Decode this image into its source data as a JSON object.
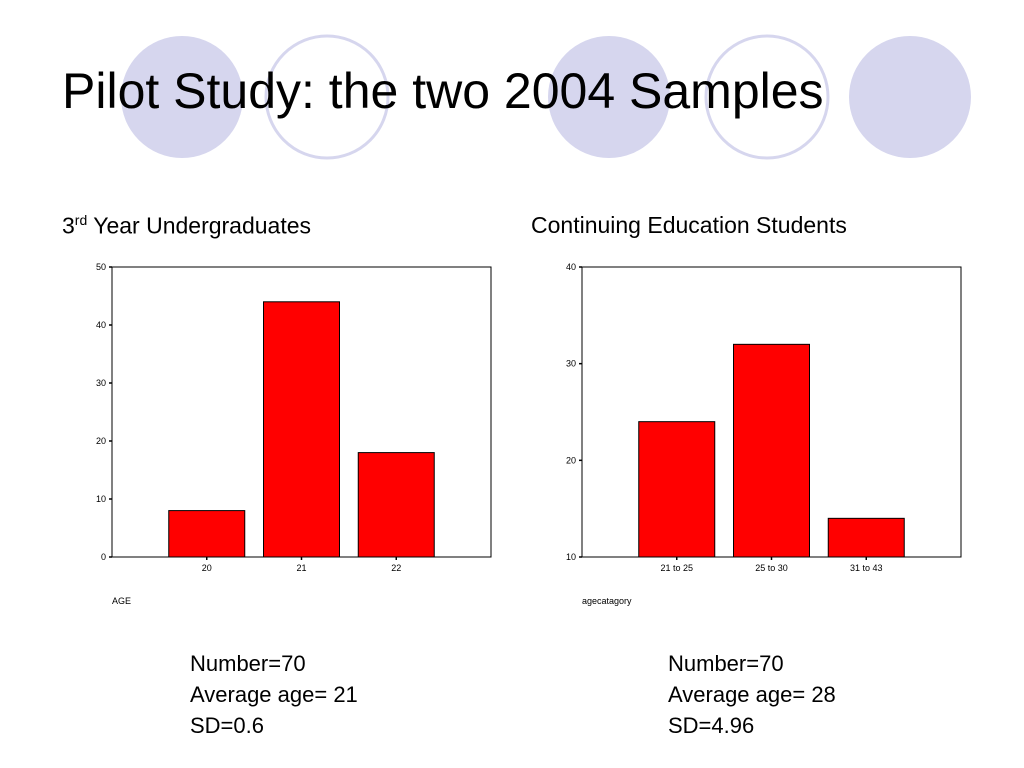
{
  "title": "Pilot Study: the two 2004 Samples",
  "theme": {
    "circle_fill": "#d6d6ee",
    "circle_stroke": "#d6d6ee",
    "bar_color": "#ff0000"
  },
  "panels": [
    {
      "title_prefix": "3",
      "title_sup": "rd",
      "title_rest": " Year Undergraduates"
    },
    {
      "title_prefix": "Continuing Education Students",
      "title_sup": "",
      "title_rest": ""
    }
  ],
  "chart_data": [
    {
      "type": "bar",
      "categories": [
        "20",
        "21",
        "22"
      ],
      "values": [
        8,
        44,
        18
      ],
      "xlabel": "AGE",
      "ylabel": "",
      "ylim": [
        0,
        50
      ],
      "yticks": [
        0,
        10,
        20,
        30,
        40,
        50
      ],
      "color": "#ff0000"
    },
    {
      "type": "bar",
      "categories": [
        "21 to 25",
        "25 to 30",
        "31 to 43"
      ],
      "values": [
        24,
        32,
        14
      ],
      "xlabel": "agecatagory",
      "ylabel": "",
      "ylim": [
        10,
        40
      ],
      "yticks": [
        10,
        20,
        30,
        40
      ],
      "color": "#ff0000"
    }
  ],
  "stats": [
    {
      "number": "Number=70",
      "average": "Average age= 21",
      "sd": "SD=0.6"
    },
    {
      "number": "Number=70",
      "average": "Average age= 28",
      "sd": "SD=4.96"
    }
  ]
}
